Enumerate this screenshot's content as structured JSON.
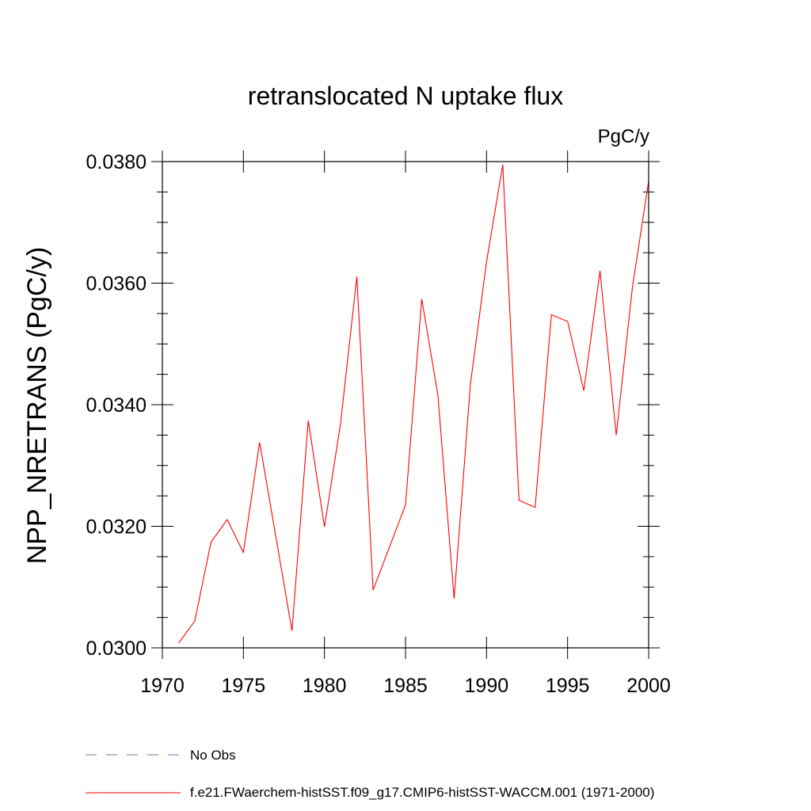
{
  "chart_data": {
    "type": "line",
    "title": "retranslocated N uptake flux",
    "units_label": "PgC/y",
    "ylabel": "NPP_NRETRANS  (PgC/y)",
    "xlabel": "",
    "xlim": [
      1970,
      2000
    ],
    "ylim": [
      0.03,
      0.038
    ],
    "x_major_ticks": [
      1970,
      1975,
      1980,
      1985,
      1990,
      1995,
      2000
    ],
    "x_tick_labels": [
      "1970",
      "1975",
      "1980",
      "1985",
      "1990",
      "1995",
      "2000"
    ],
    "y_major_ticks": [
      0.03,
      0.032,
      0.034,
      0.036,
      0.038
    ],
    "y_tick_labels": [
      "0.0300",
      "0.0320",
      "0.0340",
      "0.0360",
      "0.0380"
    ],
    "grid": false,
    "legend_position": "bottom",
    "series": [
      {
        "name": "f.e21.FWaerchem-histSST.f09_g17.CMIP6-histSST-WACCM.001 (1971-2000)",
        "color": "#ff0000",
        "dash": "solid",
        "x": [
          1971,
          1972,
          1973,
          1974,
          1975,
          1976,
          1977,
          1978,
          1979,
          1980,
          1981,
          1982,
          1983,
          1984,
          1985,
          1986,
          1987,
          1988,
          1989,
          1990,
          1991,
          1992,
          1993,
          1994,
          1995,
          1996,
          1997,
          1998,
          1999,
          2000
        ],
        "values": [
          0.03008,
          0.03044,
          0.03174,
          0.03211,
          0.03157,
          0.03338,
          0.03183,
          0.03028,
          0.03374,
          0.03199,
          0.0337,
          0.03611,
          0.03095,
          0.03165,
          0.03235,
          0.03574,
          0.03416,
          0.03081,
          0.03433,
          0.03635,
          0.03795,
          0.03243,
          0.03231,
          0.03548,
          0.03537,
          0.03423,
          0.0362,
          0.0335,
          0.03593,
          0.03768
        ]
      },
      {
        "name": "No Obs",
        "color": "#7b6fb0",
        "dash": "dashed",
        "x": [],
        "values": []
      }
    ]
  }
}
